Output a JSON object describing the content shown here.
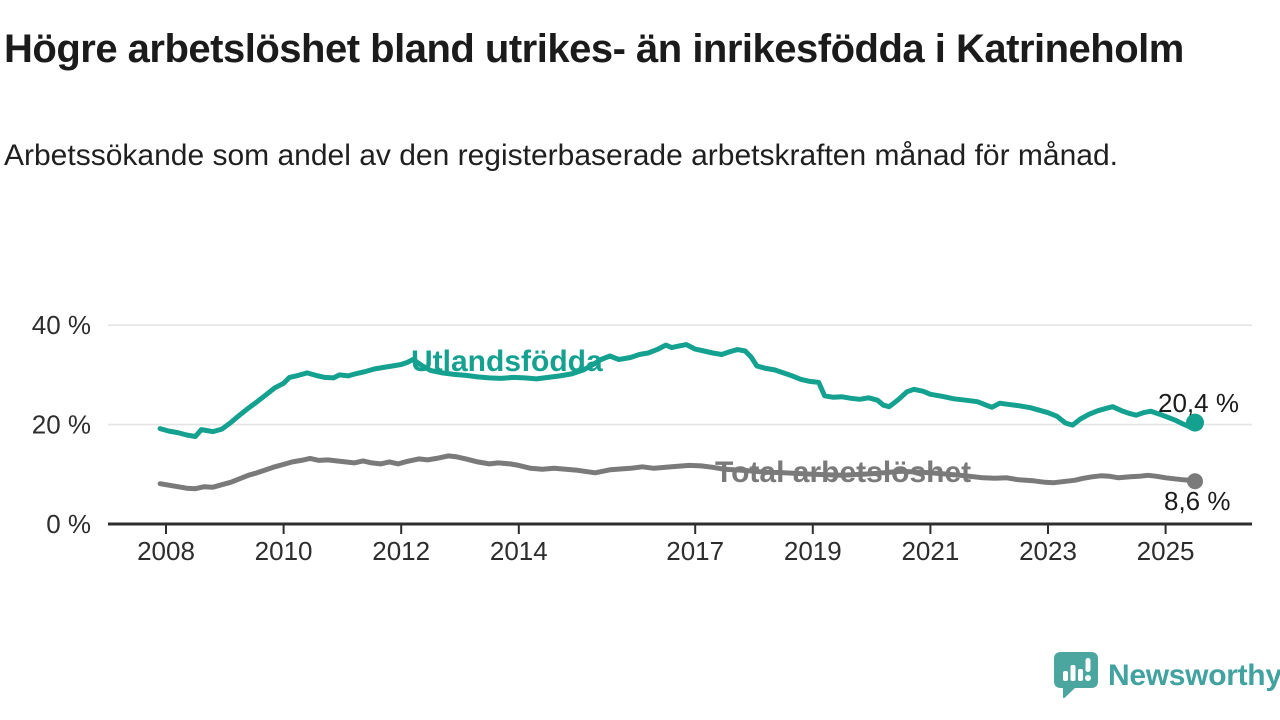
{
  "header": {
    "title": "Högre arbetslöshet bland utrikes- än inrikesfödda i Katrineholm",
    "subtitle": "Arbetssökande som andel av den registerbaserade arbetskraften månad för månad."
  },
  "branding": {
    "wordmark": "Newsworthy",
    "icon": "speech-bubble-bar-chart",
    "color": "#42a2a0"
  },
  "chart_data": {
    "type": "line",
    "title": "Högre arbetslöshet bland utrikes- än inrikesfödda i Katrineholm",
    "subtitle": "Arbetssökande som andel av den registerbaserade arbetskraften månad för månad.",
    "unit": "%",
    "grid": "horizontal",
    "x_range": [
      2007.9,
      2025.9
    ],
    "ylim": [
      0,
      42
    ],
    "y_axis": {
      "ticks": [
        {
          "value": 0,
          "label": "0 %"
        },
        {
          "value": 20,
          "label": "20 %"
        },
        {
          "value": 40,
          "label": "40 %"
        }
      ]
    },
    "x_axis": {
      "ticks": [
        {
          "year": 2008,
          "label": "2008"
        },
        {
          "year": 2010,
          "label": "2010"
        },
        {
          "year": 2012,
          "label": "2012"
        },
        {
          "year": 2014,
          "label": "2014"
        },
        {
          "year": 2017,
          "label": "2017"
        },
        {
          "year": 2019,
          "label": "2019"
        },
        {
          "year": 2021,
          "label": "2021"
        },
        {
          "year": 2023,
          "label": "2023"
        },
        {
          "year": 2025,
          "label": "2025"
        }
      ]
    },
    "series": [
      {
        "name": "Utlandsfödda",
        "color": "#14a18f",
        "end_label": "20,4 %",
        "last_value": 20.4,
        "points": [
          [
            2007.9,
            19.2
          ],
          [
            2008.05,
            18.7
          ],
          [
            2008.2,
            18.4
          ],
          [
            2008.35,
            17.9
          ],
          [
            2008.5,
            17.6
          ],
          [
            2008.6,
            19.0
          ],
          [
            2008.7,
            18.8
          ],
          [
            2008.8,
            18.6
          ],
          [
            2008.95,
            19.1
          ],
          [
            2009.1,
            20.4
          ],
          [
            2009.25,
            21.9
          ],
          [
            2009.4,
            23.3
          ],
          [
            2009.55,
            24.6
          ],
          [
            2009.7,
            26.0
          ],
          [
            2009.85,
            27.4
          ],
          [
            2010.0,
            28.3
          ],
          [
            2010.1,
            29.5
          ],
          [
            2010.25,
            29.9
          ],
          [
            2010.4,
            30.4
          ],
          [
            2010.55,
            29.9
          ],
          [
            2010.7,
            29.5
          ],
          [
            2010.85,
            29.4
          ],
          [
            2010.95,
            30.0
          ],
          [
            2011.1,
            29.8
          ],
          [
            2011.25,
            30.3
          ],
          [
            2011.4,
            30.7
          ],
          [
            2011.55,
            31.2
          ],
          [
            2011.7,
            31.5
          ],
          [
            2011.85,
            31.8
          ],
          [
            2012.0,
            32.1
          ],
          [
            2012.1,
            32.5
          ],
          [
            2012.2,
            33.1
          ],
          [
            2012.35,
            31.9
          ],
          [
            2012.5,
            30.9
          ],
          [
            2012.7,
            30.4
          ],
          [
            2012.9,
            30.1
          ],
          [
            2013.1,
            29.9
          ],
          [
            2013.3,
            29.6
          ],
          [
            2013.5,
            29.4
          ],
          [
            2013.7,
            29.3
          ],
          [
            2013.9,
            29.5
          ],
          [
            2014.1,
            29.4
          ],
          [
            2014.3,
            29.2
          ],
          [
            2014.5,
            29.5
          ],
          [
            2014.7,
            29.8
          ],
          [
            2014.9,
            30.2
          ],
          [
            2015.1,
            31.0
          ],
          [
            2015.25,
            32.0
          ],
          [
            2015.4,
            33.1
          ],
          [
            2015.55,
            33.8
          ],
          [
            2015.7,
            33.1
          ],
          [
            2015.9,
            33.5
          ],
          [
            2016.05,
            34.1
          ],
          [
            2016.2,
            34.4
          ],
          [
            2016.35,
            35.1
          ],
          [
            2016.5,
            36.0
          ],
          [
            2016.6,
            35.5
          ],
          [
            2016.72,
            35.8
          ],
          [
            2016.85,
            36.1
          ],
          [
            2017.0,
            35.2
          ],
          [
            2017.15,
            34.8
          ],
          [
            2017.3,
            34.4
          ],
          [
            2017.45,
            34.1
          ],
          [
            2017.6,
            34.7
          ],
          [
            2017.72,
            35.1
          ],
          [
            2017.85,
            34.8
          ],
          [
            2017.95,
            33.6
          ],
          [
            2018.05,
            31.8
          ],
          [
            2018.2,
            31.3
          ],
          [
            2018.35,
            31.0
          ],
          [
            2018.5,
            30.4
          ],
          [
            2018.65,
            29.8
          ],
          [
            2018.8,
            29.1
          ],
          [
            2018.95,
            28.7
          ],
          [
            2019.1,
            28.5
          ],
          [
            2019.2,
            25.8
          ],
          [
            2019.35,
            25.5
          ],
          [
            2019.5,
            25.6
          ],
          [
            2019.65,
            25.3
          ],
          [
            2019.8,
            25.1
          ],
          [
            2019.95,
            25.4
          ],
          [
            2020.1,
            24.9
          ],
          [
            2020.2,
            23.9
          ],
          [
            2020.3,
            23.6
          ],
          [
            2020.45,
            25.0
          ],
          [
            2020.6,
            26.6
          ],
          [
            2020.72,
            27.1
          ],
          [
            2020.88,
            26.7
          ],
          [
            2021.0,
            26.1
          ],
          [
            2021.2,
            25.7
          ],
          [
            2021.4,
            25.2
          ],
          [
            2021.6,
            24.9
          ],
          [
            2021.8,
            24.6
          ],
          [
            2021.95,
            23.9
          ],
          [
            2022.05,
            23.5
          ],
          [
            2022.18,
            24.3
          ],
          [
            2022.3,
            24.1
          ],
          [
            2022.5,
            23.8
          ],
          [
            2022.7,
            23.4
          ],
          [
            2022.85,
            22.9
          ],
          [
            2023.0,
            22.4
          ],
          [
            2023.15,
            21.7
          ],
          [
            2023.3,
            20.3
          ],
          [
            2023.42,
            19.9
          ],
          [
            2023.55,
            21.1
          ],
          [
            2023.7,
            22.1
          ],
          [
            2023.85,
            22.8
          ],
          [
            2024.0,
            23.3
          ],
          [
            2024.1,
            23.6
          ],
          [
            2024.25,
            22.8
          ],
          [
            2024.4,
            22.2
          ],
          [
            2024.5,
            21.9
          ],
          [
            2024.62,
            22.4
          ],
          [
            2024.75,
            22.7
          ],
          [
            2024.9,
            22.1
          ],
          [
            2025.05,
            21.4
          ],
          [
            2025.18,
            20.8
          ],
          [
            2025.3,
            20.1
          ],
          [
            2025.42,
            19.5
          ],
          [
            2025.5,
            20.4
          ]
        ]
      },
      {
        "name": "Total arbetslöshet",
        "color": "#7a7a7a",
        "end_label": "8,6 %",
        "last_value": 8.6,
        "points": [
          [
            2007.9,
            8.1
          ],
          [
            2008.05,
            7.8
          ],
          [
            2008.2,
            7.5
          ],
          [
            2008.35,
            7.2
          ],
          [
            2008.5,
            7.1
          ],
          [
            2008.65,
            7.5
          ],
          [
            2008.8,
            7.4
          ],
          [
            2008.95,
            7.9
          ],
          [
            2009.1,
            8.4
          ],
          [
            2009.25,
            9.1
          ],
          [
            2009.4,
            9.8
          ],
          [
            2009.55,
            10.3
          ],
          [
            2009.7,
            10.9
          ],
          [
            2009.85,
            11.5
          ],
          [
            2010.0,
            12.0
          ],
          [
            2010.15,
            12.5
          ],
          [
            2010.3,
            12.8
          ],
          [
            2010.45,
            13.2
          ],
          [
            2010.6,
            12.8
          ],
          [
            2010.75,
            12.9
          ],
          [
            2010.9,
            12.7
          ],
          [
            2011.05,
            12.5
          ],
          [
            2011.2,
            12.3
          ],
          [
            2011.35,
            12.7
          ],
          [
            2011.5,
            12.3
          ],
          [
            2011.65,
            12.1
          ],
          [
            2011.8,
            12.5
          ],
          [
            2011.95,
            12.1
          ],
          [
            2012.1,
            12.6
          ],
          [
            2012.3,
            13.1
          ],
          [
            2012.45,
            12.9
          ],
          [
            2012.6,
            13.2
          ],
          [
            2012.8,
            13.7
          ],
          [
            2012.95,
            13.5
          ],
          [
            2013.1,
            13.1
          ],
          [
            2013.3,
            12.5
          ],
          [
            2013.5,
            12.1
          ],
          [
            2013.65,
            12.3
          ],
          [
            2013.85,
            12.1
          ],
          [
            2014.0,
            11.8
          ],
          [
            2014.2,
            11.2
          ],
          [
            2014.4,
            11.0
          ],
          [
            2014.6,
            11.2
          ],
          [
            2014.8,
            11.0
          ],
          [
            2015.0,
            10.8
          ],
          [
            2015.3,
            10.3
          ],
          [
            2015.55,
            10.9
          ],
          [
            2015.9,
            11.2
          ],
          [
            2016.1,
            11.5
          ],
          [
            2016.3,
            11.2
          ],
          [
            2016.6,
            11.5
          ],
          [
            2016.9,
            11.8
          ],
          [
            2017.1,
            11.7
          ],
          [
            2017.3,
            11.4
          ],
          [
            2017.5,
            11.0
          ],
          [
            2017.8,
            10.8
          ],
          [
            2018.1,
            10.5
          ],
          [
            2018.5,
            10.3
          ],
          [
            2019.0,
            10.0
          ],
          [
            2019.5,
            9.8
          ],
          [
            2020.0,
            10.1
          ],
          [
            2020.5,
            10.6
          ],
          [
            2021.0,
            10.3
          ],
          [
            2021.5,
            9.8
          ],
          [
            2021.9,
            9.3
          ],
          [
            2022.1,
            9.2
          ],
          [
            2022.3,
            9.3
          ],
          [
            2022.5,
            8.9
          ],
          [
            2022.75,
            8.7
          ],
          [
            2022.95,
            8.4
          ],
          [
            2023.1,
            8.3
          ],
          [
            2023.3,
            8.6
          ],
          [
            2023.45,
            8.8
          ],
          [
            2023.6,
            9.2
          ],
          [
            2023.75,
            9.5
          ],
          [
            2023.9,
            9.7
          ],
          [
            2024.05,
            9.6
          ],
          [
            2024.2,
            9.3
          ],
          [
            2024.4,
            9.5
          ],
          [
            2024.55,
            9.6
          ],
          [
            2024.7,
            9.8
          ],
          [
            2024.85,
            9.6
          ],
          [
            2025.0,
            9.3
          ],
          [
            2025.15,
            9.1
          ],
          [
            2025.3,
            8.9
          ],
          [
            2025.4,
            8.8
          ],
          [
            2025.5,
            8.6
          ]
        ]
      }
    ],
    "legend_position": "inline-labels-on-lines",
    "colors": {
      "gridline": "#e4e4e4",
      "axis": "#2e2e2e",
      "tick_text": "#2d2d2d"
    }
  }
}
